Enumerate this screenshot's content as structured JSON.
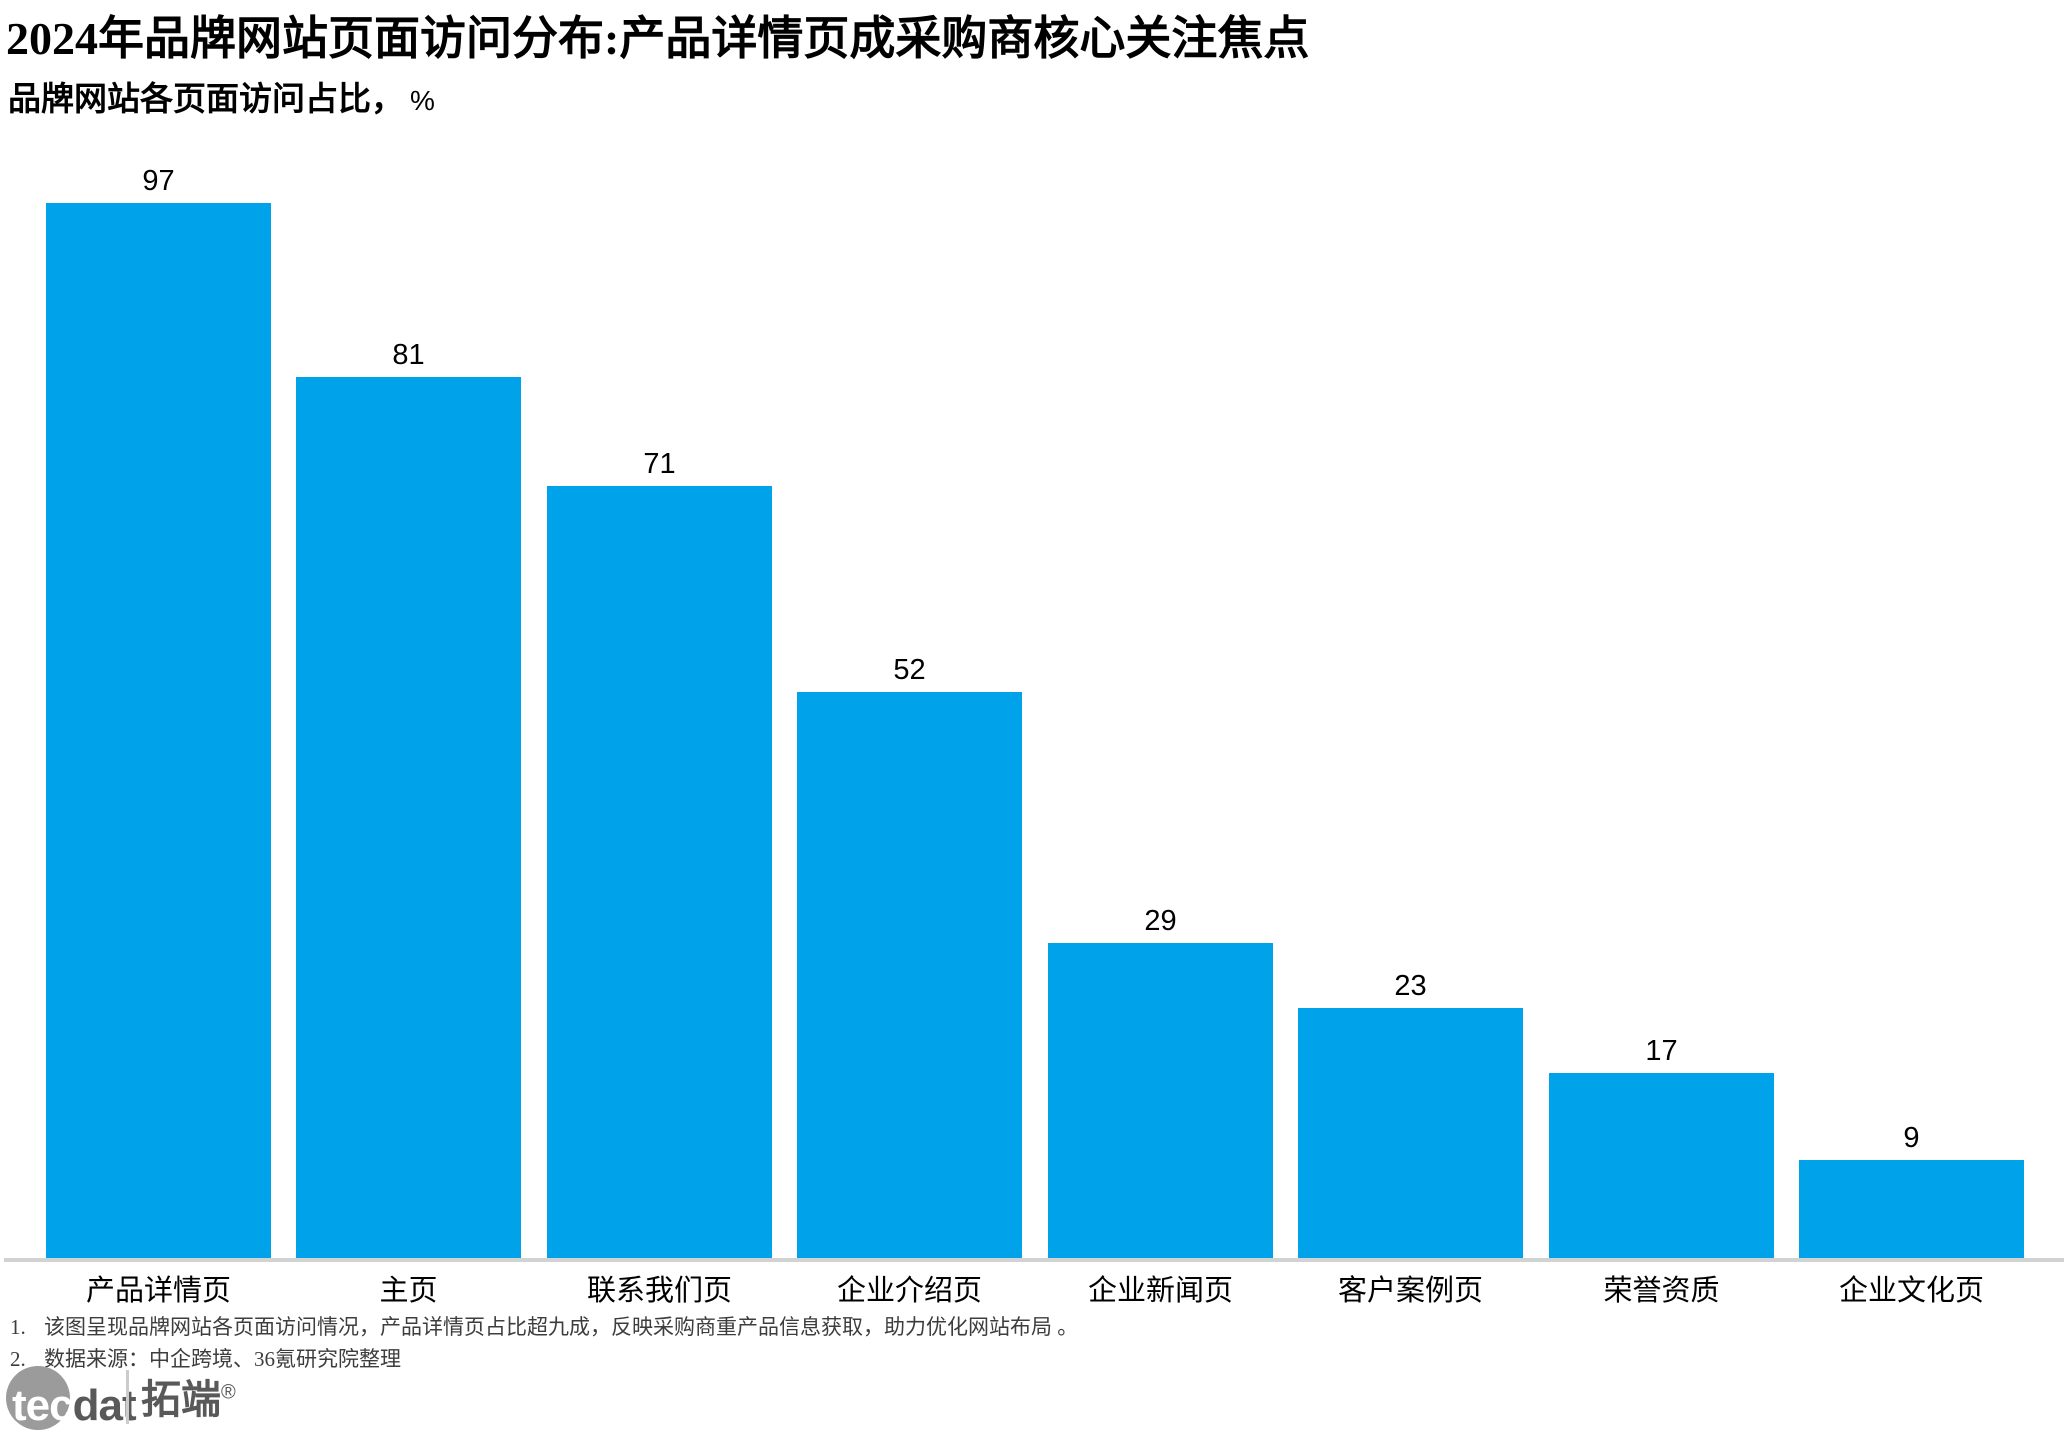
{
  "chart_data": {
    "type": "bar",
    "title": "2024年品牌网站页面访问分布:产品详情页成采购商核心关注焦点",
    "subtitle": "品牌网站各页面访问占比，",
    "unit": "%",
    "categories": [
      "产品详情页",
      "主页",
      "联系我们页",
      "企业介绍页",
      "企业新闻页",
      "客户案例页",
      "荣誉资质",
      "企业文化页"
    ],
    "values": [
      97,
      81,
      71,
      52,
      29,
      23,
      17,
      9
    ],
    "xlabel": "",
    "ylabel": "",
    "ylim": [
      0,
      100
    ],
    "grid": false,
    "legend_position": "none",
    "value_labels_shown": true,
    "bar_color": "#00a3ea",
    "axis_line_color": "#d2d2d2",
    "value_label_color": "#000000"
  },
  "footnotes": {
    "items": [
      {
        "num": "1.",
        "text": "该图呈现品牌网站各页面访问情况，产品详情页占比超九成，反映采购商重产品信息获取，助力优化网站布局 。"
      },
      {
        "num": "2.",
        "text": "数据来源：中企跨境、36氪研究院整理"
      }
    ]
  },
  "logo": {
    "word_light": "tec",
    "word_dark": "dat",
    "cjk": "拓端",
    "reg_mark": "®"
  }
}
